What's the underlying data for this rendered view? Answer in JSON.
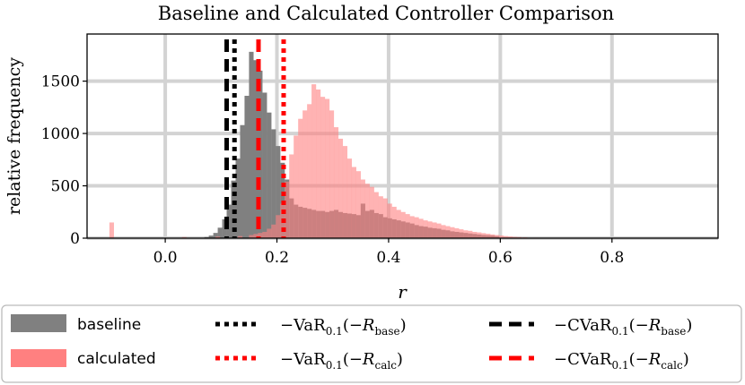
{
  "chart_data": {
    "type": "bar",
    "title": "Baseline and Calculated Controller Comparison",
    "xlabel": "r",
    "ylabel": "relative frequency",
    "xlim": [
      -0.14,
      0.99
    ],
    "ylim": [
      0,
      1950
    ],
    "x_ticks": [
      "0.0",
      "0.2",
      "0.4",
      "0.6",
      "0.8"
    ],
    "x_tick_values": [
      0.0,
      0.2,
      0.4,
      0.6,
      0.8
    ],
    "y_ticks": [
      "0",
      "500",
      "1000",
      "1500"
    ],
    "y_tick_values": [
      0,
      500,
      1000,
      1500
    ],
    "grid": true,
    "legend_position": "bottom",
    "bin_width": 0.0082,
    "series": [
      {
        "name": "baseline",
        "color": "#808080",
        "bins": [
          [
            0.07,
            10
          ],
          [
            0.078,
            25
          ],
          [
            0.086,
            50
          ],
          [
            0.094,
            100
          ],
          [
            0.102,
            180
          ],
          [
            0.11,
            320
          ],
          [
            0.118,
            550
          ],
          [
            0.126,
            760
          ],
          [
            0.134,
            1080
          ],
          [
            0.142,
            1360
          ],
          [
            0.15,
            1780
          ],
          [
            0.158,
            1700
          ],
          [
            0.166,
            1600
          ],
          [
            0.174,
            1390
          ],
          [
            0.182,
            1200
          ],
          [
            0.19,
            1040
          ],
          [
            0.198,
            880
          ],
          [
            0.206,
            720
          ],
          [
            0.214,
            560
          ],
          [
            0.222,
            380
          ],
          [
            0.23,
            320
          ],
          [
            0.238,
            300
          ],
          [
            0.246,
            290
          ],
          [
            0.254,
            280
          ],
          [
            0.262,
            270
          ],
          [
            0.27,
            260
          ],
          [
            0.278,
            260
          ],
          [
            0.286,
            250
          ],
          [
            0.294,
            260
          ],
          [
            0.302,
            270
          ],
          [
            0.31,
            250
          ],
          [
            0.318,
            240
          ],
          [
            0.326,
            235
          ],
          [
            0.334,
            230
          ],
          [
            0.342,
            220
          ],
          [
            0.35,
            330
          ],
          [
            0.358,
            260
          ],
          [
            0.366,
            270
          ],
          [
            0.374,
            240
          ],
          [
            0.382,
            230
          ],
          [
            0.39,
            200
          ],
          [
            0.398,
            190
          ],
          [
            0.406,
            180
          ],
          [
            0.414,
            170
          ],
          [
            0.422,
            160
          ],
          [
            0.43,
            150
          ],
          [
            0.438,
            140
          ],
          [
            0.446,
            125
          ],
          [
            0.454,
            115
          ],
          [
            0.462,
            110
          ],
          [
            0.47,
            100
          ],
          [
            0.478,
            95
          ],
          [
            0.486,
            90
          ],
          [
            0.494,
            80
          ],
          [
            0.502,
            75
          ],
          [
            0.51,
            65
          ],
          [
            0.518,
            60
          ],
          [
            0.526,
            55
          ],
          [
            0.534,
            50
          ],
          [
            0.542,
            45
          ],
          [
            0.55,
            40
          ],
          [
            0.558,
            35
          ],
          [
            0.566,
            30
          ],
          [
            0.574,
            28
          ],
          [
            0.582,
            25
          ],
          [
            0.59,
            20
          ]
        ]
      },
      {
        "name": "calculated",
        "color": "#ff8080",
        "bins": [
          [
            -0.1,
            150
          ],
          [
            0.03,
            10
          ],
          [
            0.09,
            15
          ],
          [
            0.13,
            20
          ],
          [
            0.15,
            30
          ],
          [
            0.158,
            40
          ],
          [
            0.166,
            50
          ],
          [
            0.174,
            60
          ],
          [
            0.182,
            90
          ],
          [
            0.19,
            130
          ],
          [
            0.198,
            220
          ],
          [
            0.206,
            330
          ],
          [
            0.214,
            540
          ],
          [
            0.222,
            800
          ],
          [
            0.23,
            980
          ],
          [
            0.238,
            1140
          ],
          [
            0.246,
            1220
          ],
          [
            0.254,
            1280
          ],
          [
            0.262,
            1470
          ],
          [
            0.27,
            1420
          ],
          [
            0.278,
            1350
          ],
          [
            0.286,
            1330
          ],
          [
            0.294,
            1220
          ],
          [
            0.302,
            1060
          ],
          [
            0.31,
            950
          ],
          [
            0.318,
            880
          ],
          [
            0.326,
            760
          ],
          [
            0.334,
            680
          ],
          [
            0.342,
            640
          ],
          [
            0.35,
            560
          ],
          [
            0.358,
            520
          ],
          [
            0.366,
            490
          ],
          [
            0.374,
            440
          ],
          [
            0.382,
            400
          ],
          [
            0.39,
            380
          ],
          [
            0.398,
            330
          ],
          [
            0.406,
            300
          ],
          [
            0.414,
            270
          ],
          [
            0.422,
            250
          ],
          [
            0.43,
            230
          ],
          [
            0.438,
            210
          ],
          [
            0.446,
            200
          ],
          [
            0.454,
            185
          ],
          [
            0.462,
            170
          ],
          [
            0.47,
            160
          ],
          [
            0.478,
            150
          ],
          [
            0.486,
            140
          ],
          [
            0.494,
            125
          ],
          [
            0.502,
            115
          ],
          [
            0.51,
            105
          ],
          [
            0.518,
            95
          ],
          [
            0.526,
            85
          ],
          [
            0.534,
            75
          ],
          [
            0.542,
            70
          ],
          [
            0.55,
            60
          ],
          [
            0.558,
            55
          ],
          [
            0.566,
            48
          ],
          [
            0.574,
            42
          ],
          [
            0.582,
            36
          ],
          [
            0.59,
            30
          ],
          [
            0.598,
            25
          ],
          [
            0.606,
            20
          ],
          [
            0.614,
            16
          ],
          [
            0.622,
            12
          ],
          [
            0.63,
            10
          ],
          [
            0.64,
            8
          ],
          [
            0.66,
            5
          ],
          [
            0.68,
            4
          ]
        ]
      }
    ],
    "vlines": [
      {
        "label": "-VaR0.1(-Rbase)",
        "x": 0.124,
        "color": "#000000",
        "style": "dotted"
      },
      {
        "label": "-CVaR0.1(-Rbase)",
        "x": 0.11,
        "color": "#000000",
        "style": "dashed"
      },
      {
        "label": "-VaR0.1(-Rcalc)",
        "x": 0.212,
        "color": "#ff0000",
        "style": "dotted"
      },
      {
        "label": "-CVaR0.1(-Rcalc)",
        "x": 0.167,
        "color": "#ff0000",
        "style": "dashed"
      }
    ]
  },
  "legend": {
    "baseline": "baseline",
    "calculated": "calculated",
    "var_prefix": "−VaR",
    "cvar_prefix": "−CVaR",
    "sub_level": "0.1",
    "open": "(−",
    "r_symbol": "R",
    "sub_base": "base",
    "sub_calc": "calc",
    "close": ")"
  }
}
